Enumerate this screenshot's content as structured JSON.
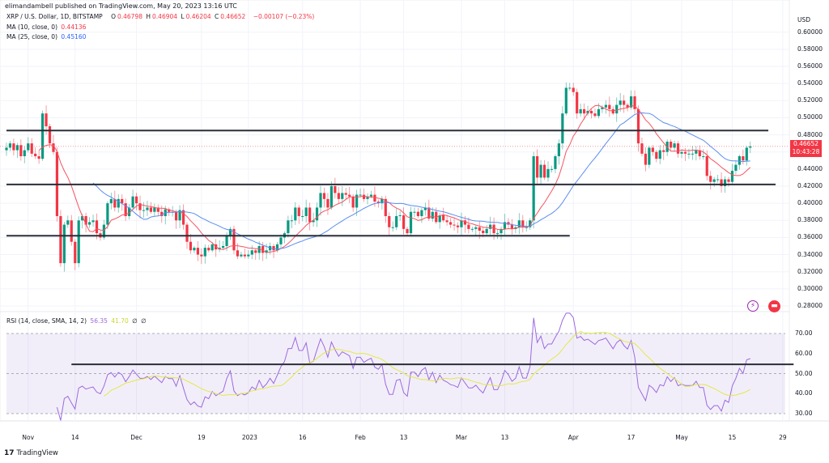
{
  "header": {
    "published": "elimandambell published on TradingView.com, May 20, 2023 13:16 UTC"
  },
  "legend": {
    "symbol": "XRP / U.S. Dollar, 1D, BITSTAMP",
    "o_label": "O",
    "o": "0.46798",
    "h_label": "H",
    "h": "0.46904",
    "l_label": "L",
    "l": "0.46204",
    "c_label": "C",
    "c": "0.46652",
    "change": "−0.00107 (−0.23%)",
    "ma10_label": "MA (10, close, 0)",
    "ma10": "0.44136",
    "ma25_label": "MA (25, close, 0)",
    "ma25": "0.45160",
    "rsi_label": "RSI (14, close, SMA, 14, 2)",
    "rsi": "56.35",
    "rsi_sma": "41.70",
    "rsi_na1": "∅",
    "rsi_na2": "∅"
  },
  "price_axis": {
    "currency": "USD",
    "ticks": [
      "0.60000",
      "0.58000",
      "0.56000",
      "0.54000",
      "0.52000",
      "0.50000",
      "0.48000",
      "0.46000",
      "0.44000",
      "0.42000",
      "0.40000",
      "0.38000",
      "0.36000",
      "0.34000",
      "0.32000",
      "0.30000",
      "0.28000"
    ],
    "hidden_ticks": [
      "0.46000"
    ],
    "last_price": "0.46652",
    "countdown": "10:43:28"
  },
  "rsi_axis": {
    "ticks": [
      "70.00",
      "60.00",
      "50.00",
      "40.00",
      "30.00"
    ]
  },
  "time_axis": {
    "ticks": [
      {
        "label": "Nov",
        "date": "2022-11-01"
      },
      {
        "label": "14",
        "date": "2022-11-14"
      },
      {
        "label": "Dec",
        "date": "2022-12-01"
      },
      {
        "label": "19",
        "date": "2022-12-19"
      },
      {
        "label": "2023",
        "date": "2023-01-01"
      },
      {
        "label": "16",
        "date": "2023-01-16"
      },
      {
        "label": "Feb",
        "date": "2023-02-01"
      },
      {
        "label": "13",
        "date": "2023-02-13"
      },
      {
        "label": "Mar",
        "date": "2023-03-01"
      },
      {
        "label": "13",
        "date": "2023-03-13"
      },
      {
        "label": "Apr",
        "date": "2023-04-01"
      },
      {
        "label": "17",
        "date": "2023-04-17"
      },
      {
        "label": "May",
        "date": "2023-05-01"
      },
      {
        "label": "15",
        "date": "2023-05-15"
      },
      {
        "label": "29",
        "date": "2023-05-29"
      }
    ]
  },
  "colors": {
    "up": "#089981",
    "down": "#f23645",
    "ma10": "#f7525f",
    "ma25": "#5b8def",
    "rsi": "#9c6ade",
    "rsi_sma": "#e3e84a",
    "trendline": "#2a2e39"
  },
  "footer": {
    "brand": "TradingView"
  },
  "icons": [
    "lightning-icon",
    "us-flag-icon"
  ],
  "chart_data": {
    "type": "candlestick",
    "symbol": "XRP/USD",
    "interval": "1D",
    "start_date": "2022-10-26",
    "ylim": [
      0.28,
      0.6
    ],
    "rsi_ylim": [
      30,
      70
    ],
    "closes": [
      0.465,
      0.47,
      0.462,
      0.468,
      0.455,
      0.462,
      0.47,
      0.458,
      0.455,
      0.452,
      0.505,
      0.49,
      0.47,
      0.46,
      0.385,
      0.33,
      0.375,
      0.38,
      0.355,
      0.33,
      0.38,
      0.385,
      0.375,
      0.378,
      0.38,
      0.365,
      0.36,
      0.375,
      0.4,
      0.405,
      0.395,
      0.405,
      0.4,
      0.385,
      0.395,
      0.408,
      0.4,
      0.392,
      0.392,
      0.395,
      0.39,
      0.395,
      0.39,
      0.385,
      0.393,
      0.39,
      0.39,
      0.38,
      0.392,
      0.375,
      0.355,
      0.345,
      0.348,
      0.34,
      0.338,
      0.348,
      0.345,
      0.352,
      0.346,
      0.348,
      0.35,
      0.362,
      0.37,
      0.345,
      0.338,
      0.34,
      0.338,
      0.34,
      0.345,
      0.342,
      0.35,
      0.342,
      0.345,
      0.35,
      0.345,
      0.352,
      0.36,
      0.365,
      0.38,
      0.38,
      0.395,
      0.385,
      0.385,
      0.395,
      0.378,
      0.38,
      0.395,
      0.412,
      0.405,
      0.395,
      0.42,
      0.412,
      0.405,
      0.412,
      0.41,
      0.408,
      0.395,
      0.41,
      0.41,
      0.405,
      0.408,
      0.41,
      0.402,
      0.4,
      0.405,
      0.385,
      0.372,
      0.372,
      0.385,
      0.386,
      0.37,
      0.365,
      0.39,
      0.39,
      0.385,
      0.392,
      0.395,
      0.382,
      0.39,
      0.378,
      0.386,
      0.38,
      0.378,
      0.375,
      0.374,
      0.372,
      0.38,
      0.375,
      0.37,
      0.37,
      0.372,
      0.368,
      0.365,
      0.37,
      0.375,
      0.365,
      0.365,
      0.37,
      0.378,
      0.375,
      0.37,
      0.372,
      0.38,
      0.372,
      0.372,
      0.38,
      0.455,
      0.43,
      0.445,
      0.43,
      0.44,
      0.44,
      0.455,
      0.47,
      0.505,
      0.535,
      0.535,
      0.53,
      0.505,
      0.51,
      0.505,
      0.508,
      0.505,
      0.502,
      0.51,
      0.512,
      0.515,
      0.51,
      0.505,
      0.515,
      0.52,
      0.515,
      0.512,
      0.525,
      0.51,
      0.47,
      0.458,
      0.445,
      0.465,
      0.46,
      0.452,
      0.462,
      0.46,
      0.472,
      0.465,
      0.47,
      0.458,
      0.46,
      0.458,
      0.458,
      0.458,
      0.462,
      0.455,
      0.455,
      0.432,
      0.425,
      0.428,
      0.428,
      0.42,
      0.428,
      0.425,
      0.438,
      0.445,
      0.455,
      0.45,
      0.465,
      0.4665
    ],
    "indicators": [
      "MA 10",
      "MA 25",
      "RSI 14",
      "RSI SMA 14"
    ],
    "trendlines": [
      {
        "pane": "price",
        "value": 0.485,
        "from": "2022-10-26",
        "to": "2023-05-25"
      },
      {
        "pane": "price",
        "value": 0.422,
        "from": "2022-10-26",
        "to": "2023-05-27"
      },
      {
        "pane": "price",
        "value": 0.362,
        "from": "2022-10-26",
        "to": "2023-03-31"
      },
      {
        "pane": "rsi",
        "value": 54.6,
        "from": "2022-11-13",
        "to": "2023-06-01"
      }
    ]
  }
}
